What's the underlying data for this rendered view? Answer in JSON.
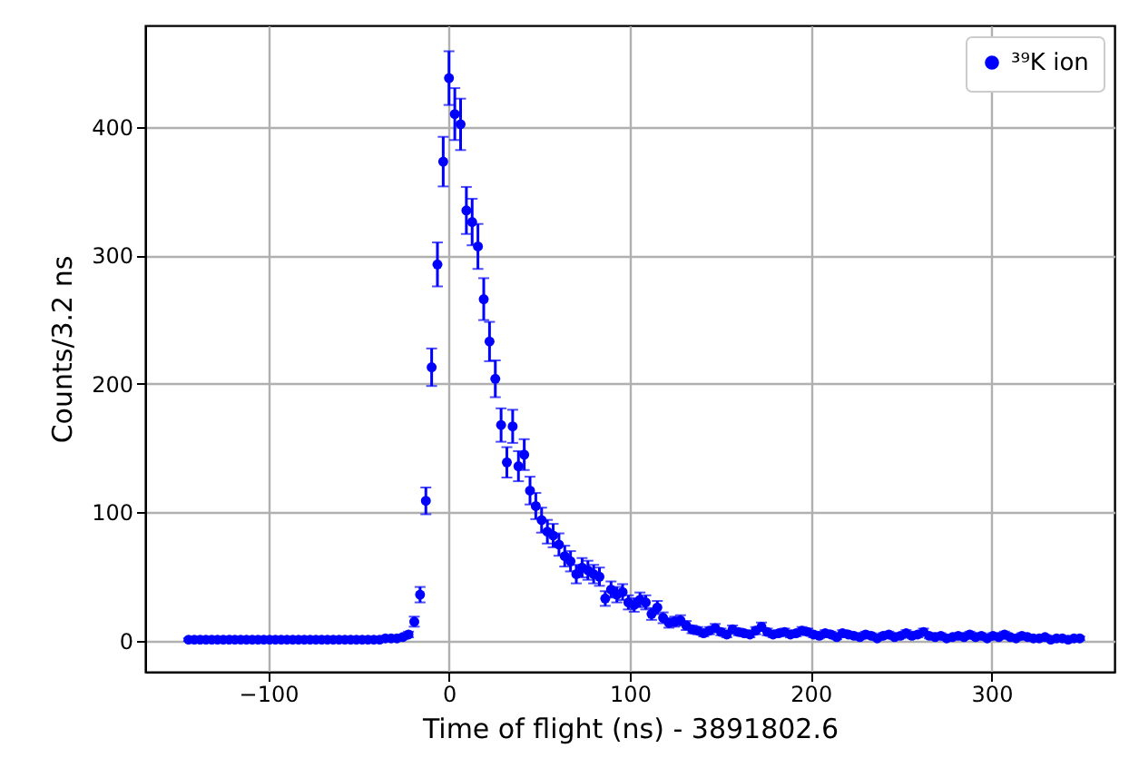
{
  "chart_data": {
    "type": "scatter",
    "xlabel": "Time of flight (ns) - 3891802.6",
    "ylabel": "Counts/3.2 ns",
    "x": [
      -144,
      -140.8,
      -137.6,
      -134.4,
      -131.2,
      -128,
      -124.8,
      -121.6,
      -118.4,
      -115.2,
      -112,
      -108.8,
      -105.6,
      -102.4,
      -99.2,
      -96,
      -92.8,
      -89.6,
      -86.4,
      -83.2,
      -80,
      -76.8,
      -73.6,
      -70.4,
      -67.2,
      -64,
      -60.8,
      -57.6,
      -54.4,
      -51.2,
      -48,
      -44.8,
      -41.6,
      -38.4,
      -35.2,
      -32,
      -28.8,
      -25.6,
      -22.4,
      -19.2,
      -16,
      -12.8,
      -9.6,
      -6.4,
      -3.2,
      0,
      3.2,
      6.4,
      9.6,
      12.8,
      16,
      19.2,
      22.4,
      25.6,
      28.8,
      32,
      35.2,
      38.4,
      41.6,
      44.8,
      48,
      51.2,
      54.4,
      57.6,
      60.8,
      64,
      67.2,
      70.4,
      73.6,
      76.8,
      80,
      83.2,
      86.4,
      89.6,
      92.8,
      96,
      99.2,
      102.4,
      105.6,
      108.8,
      112,
      115.2,
      118.4,
      121.6,
      124.8,
      128,
      131.2,
      134.4,
      137.6,
      140.8,
      144,
      147.2,
      150.4,
      153.6,
      156.8,
      160,
      163.2,
      166.4,
      169.6,
      172.8,
      176,
      179.2,
      182.4,
      185.6,
      188.8,
      192,
      195.2,
      198.4,
      201.6,
      204.8,
      208,
      211.2,
      214.4,
      217.6,
      220.8,
      224,
      227.2,
      230.4,
      233.6,
      236.8,
      240,
      243.2,
      246.4,
      249.6,
      252.8,
      256,
      259.2,
      262.4,
      265.6,
      268.8,
      272,
      275.2,
      278.4,
      281.6,
      284.8,
      288,
      291.2,
      294.4,
      297.6,
      300.8,
      304,
      307.2,
      310.4,
      313.6,
      316.8,
      320,
      323.2,
      326.4,
      329.6,
      332.8,
      336,
      339.2,
      342.4,
      345.6,
      348.8
    ],
    "series": [
      {
        "name": "³⁹K ion",
        "color": "#0000ff",
        "values": [
          1,
          1,
          1,
          1,
          1,
          1,
          1,
          1,
          1,
          1,
          1,
          1,
          1,
          1,
          1,
          1,
          1,
          1,
          1,
          1,
          1,
          1,
          1,
          1,
          1,
          1,
          1,
          1,
          1,
          1,
          1,
          1,
          1,
          1,
          2,
          2,
          2,
          3,
          5,
          15,
          36,
          109,
          213,
          293,
          373,
          438,
          410,
          402,
          335,
          326,
          307,
          266,
          233,
          204,
          168,
          139,
          167,
          136,
          145,
          117,
          105,
          94,
          85,
          82,
          75,
          66,
          62,
          52,
          57,
          55,
          52,
          50,
          33,
          40,
          36,
          38,
          30,
          28,
          32,
          30,
          21,
          26,
          18,
          14,
          15,
          16,
          12,
          9,
          8,
          6,
          8,
          10,
          7,
          5,
          9,
          7,
          6,
          5,
          8,
          11,
          7,
          5,
          6,
          7,
          5,
          6,
          8,
          7,
          5,
          4,
          6,
          5,
          3,
          6,
          5,
          4,
          3,
          5,
          4,
          2,
          4,
          5,
          3,
          4,
          6,
          4,
          5,
          7,
          4,
          3,
          4,
          2,
          3,
          4,
          3,
          5,
          3,
          4,
          2,
          4,
          3,
          5,
          3,
          2,
          4,
          3,
          2,
          2,
          3,
          1,
          2,
          2,
          1,
          2,
          2
        ],
        "errors": [
          1,
          1,
          1,
          1,
          1,
          1,
          1,
          1,
          1,
          1,
          1,
          1,
          1,
          1,
          1,
          1,
          1,
          1,
          1,
          1,
          1,
          1,
          1,
          1,
          1,
          1,
          1,
          1,
          1,
          1,
          1,
          1,
          1,
          1,
          1.4,
          1.4,
          1.4,
          1.7,
          2.2,
          3.9,
          6,
          10.4,
          14.6,
          17.1,
          19.3,
          20.9,
          20.2,
          20,
          18.3,
          18.1,
          17.5,
          16.3,
          15.3,
          14.3,
          13,
          11.8,
          12.9,
          11.7,
          12,
          10.8,
          10.2,
          9.7,
          9.2,
          9.1,
          8.7,
          8.1,
          7.9,
          7.2,
          7.5,
          7.4,
          7.2,
          7.1,
          5.7,
          6.3,
          6,
          6.2,
          5.5,
          5.3,
          5.7,
          5.5,
          4.6,
          5.1,
          4.2,
          3.7,
          3.9,
          4,
          3.5,
          3,
          2.8,
          2.4,
          2.8,
          3.2,
          2.6,
          2.2,
          3,
          2.6,
          2.4,
          2.2,
          2.8,
          3.3,
          2.6,
          2.2,
          2.4,
          2.6,
          2.2,
          2.4,
          2.8,
          2.6,
          2.2,
          2,
          2.4,
          2.2,
          1.7,
          2.4,
          2.2,
          2,
          1.7,
          2.2,
          2,
          1.4,
          2,
          2.2,
          1.7,
          2,
          2.4,
          2,
          2.2,
          2.6,
          2,
          1.7,
          2,
          1.4,
          1.7,
          2,
          1.7,
          2.2,
          1.7,
          2,
          1.4,
          2,
          1.7,
          2.2,
          1.7,
          1.4,
          2,
          1.7,
          1.4,
          1.4,
          1.7,
          1,
          1.4,
          1.4,
          1,
          1.4,
          1.4
        ]
      }
    ],
    "xlim": [
      -168,
      368
    ],
    "ylim": [
      -24,
      479
    ],
    "xticks": [
      -100,
      0,
      100,
      200,
      300
    ],
    "yticks": [
      0,
      100,
      200,
      300,
      400
    ],
    "grid": true,
    "legend": "top right",
    "marker": "circle"
  }
}
